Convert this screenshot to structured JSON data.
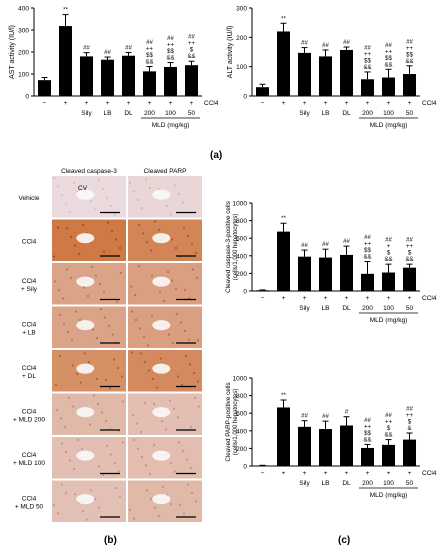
{
  "figure": {
    "panel_labels": [
      "(a)",
      "(b)",
      "(c)"
    ]
  },
  "chart_data": [
    {
      "type": "bar",
      "ylabel": "AST activity (IU/l)",
      "ylim": [
        0,
        400
      ],
      "yticks": [
        0,
        100,
        200,
        300,
        400
      ],
      "categories": [
        "−",
        "+",
        "Sily",
        "LB",
        "DL",
        "200",
        "100",
        "50"
      ],
      "ccl4_row": [
        "−",
        "+",
        "+",
        "+",
        "+",
        "+",
        "+",
        "+"
      ],
      "ccl4_label": "CCl4",
      "group_label": "MLD (mg/kg)",
      "values": [
        72,
        318,
        180,
        165,
        183,
        112,
        132,
        140
      ],
      "errors": [
        12,
        52,
        17,
        12,
        15,
        22,
        20,
        18
      ],
      "annotations": [
        "",
        "**",
        "##",
        "##",
        "##",
        "##\n++\n$$\n&&",
        "##\n++\n$$\n&&",
        "##\n++\n$\n&&"
      ]
    },
    {
      "type": "bar",
      "ylabel": "ALT activity (IU/l)",
      "ylim": [
        0,
        300
      ],
      "yticks": [
        0,
        100,
        200,
        300
      ],
      "categories": [
        "−",
        "+",
        "Sily",
        "LB",
        "DL",
        "200",
        "100",
        "50"
      ],
      "ccl4_row": [
        "−",
        "+",
        "+",
        "+",
        "+",
        "+",
        "+",
        "+"
      ],
      "ccl4_label": "CCl4",
      "group_label": "MLD (mg/kg)",
      "values": [
        30,
        220,
        147,
        135,
        157,
        57,
        63,
        75
      ],
      "errors": [
        10,
        28,
        18,
        22,
        10,
        25,
        28,
        28
      ],
      "annotations": [
        "",
        "**",
        "##",
        "##",
        "##",
        "##\n++\n$$\n&&",
        "##\n++\n$$\n&&",
        "##\n++\n$$\n&&"
      ]
    },
    {
      "type": "bar",
      "ylabel": "Cleaved caspase-3-positive cells (cells/1,000 hepatocytes)",
      "ylim": [
        0,
        1000
      ],
      "yticks": [
        0,
        200,
        400,
        600,
        800,
        1000
      ],
      "categories": [
        "−",
        "+",
        "Sily",
        "LB",
        "DL",
        "200",
        "100",
        "50"
      ],
      "ccl4_row": [
        "−",
        "+",
        "+",
        "+",
        "+",
        "+",
        "+",
        "+"
      ],
      "ccl4_label": "CCl4",
      "group_label": "MLD (mg/kg)",
      "values": [
        8,
        675,
        390,
        380,
        410,
        195,
        210,
        265
      ],
      "errors": [
        4,
        95,
        75,
        95,
        100,
        140,
        95,
        40
      ],
      "annotations": [
        "",
        "**",
        "##",
        "##",
        "##",
        "##\n++\n$$\n&&",
        "##\n+\n$\n&&",
        "##\n++\n$\n&&"
      ]
    },
    {
      "type": "bar",
      "ylabel": "Cleaved PARP-positive cells (cells/1,000 hepatocytes)",
      "ylim": [
        0,
        1000
      ],
      "yticks": [
        0,
        200,
        400,
        600,
        800,
        1000
      ],
      "categories": [
        "−",
        "+",
        "Sily",
        "LB",
        "DL",
        "200",
        "100",
        "50"
      ],
      "ccl4_row": [
        "−",
        "+",
        "+",
        "+",
        "+",
        "+",
        "+",
        "+"
      ],
      "ccl4_label": "CCl4",
      "group_label": "MLD (mg/kg)",
      "values": [
        5,
        665,
        445,
        420,
        460,
        205,
        240,
        300
      ],
      "errors": [
        3,
        85,
        70,
        90,
        100,
        40,
        60,
        75
      ],
      "annotations": [
        "",
        "**",
        "##",
        "##",
        "#",
        "##\n++\n$$\n&&",
        "##\n++\n$\n&&",
        "##\n++\n$\n&"
      ]
    }
  ],
  "micrographs": {
    "column_headers": [
      "Cleaved caspase-3",
      "Cleaved PARP"
    ],
    "row_labels": [
      "Vehicle",
      "CCl4",
      "CCl4\n+ Sily",
      "CCl4\n+ LB",
      "CCl4\n+ DL",
      "CCl4\n+ MLD 200",
      "CCl4\n+ MLD 100",
      "CCl4\n+ MLD 50"
    ],
    "vessel_label": "CV",
    "stain_intensity": [
      [
        0.05,
        0.08
      ],
      [
        0.95,
        0.85
      ],
      [
        0.55,
        0.6
      ],
      [
        0.55,
        0.6
      ],
      [
        0.75,
        0.8
      ],
      [
        0.35,
        0.3
      ],
      [
        0.3,
        0.32
      ],
      [
        0.28,
        0.35
      ]
    ],
    "colors": {
      "tissue": "#ecdfe6",
      "stain": "#c8621e",
      "vessel": "#fafafa"
    }
  }
}
